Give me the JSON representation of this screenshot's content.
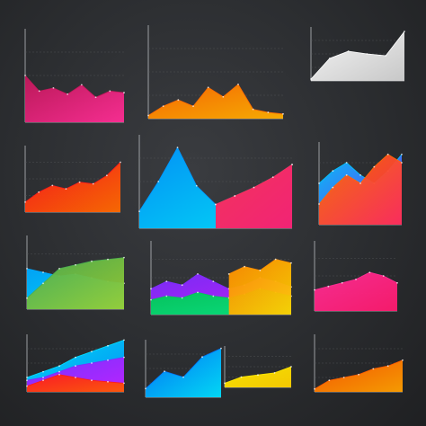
{
  "chart_data": [
    {
      "type": "area",
      "series": [
        {
          "values": [
            30,
            20,
            22,
            18,
            24,
            16,
            20,
            19
          ],
          "colors": [
            "#c2185b",
            "#ff2d95"
          ]
        }
      ],
      "xlim": [
        0,
        7
      ],
      "ylim": [
        0,
        60
      ],
      "grid": true
    },
    {
      "type": "area",
      "series": [
        {
          "values": [
            2,
            8,
            12,
            8,
            20,
            14,
            22,
            6,
            4,
            3
          ],
          "colors": [
            "#ff6a00",
            "#ffb000"
          ]
        }
      ],
      "xlim": [
        0,
        9
      ],
      "ylim": [
        0,
        60
      ],
      "grid": true
    },
    {
      "type": "area",
      "series": [
        {
          "values": [
            2,
            25,
            33,
            30,
            28,
            55
          ],
          "colors": [
            "#ffffff",
            "#d0d0d0"
          ]
        }
      ],
      "xlim": [
        0,
        5
      ],
      "ylim": [
        0,
        60
      ],
      "grid": true
    },
    {
      "type": "area",
      "series": [
        {
          "values": [
            6,
            12,
            16,
            14,
            18,
            17,
            22,
            30
          ],
          "colors": [
            "#ff1a1a",
            "#ff6a00"
          ]
        }
      ],
      "xlim": [
        0,
        7
      ],
      "ylim": [
        0,
        40
      ],
      "grid": true
    },
    {
      "type": "area",
      "series": [
        {
          "values": [
            20,
            55,
            95,
            50,
            28,
            38,
            48,
            60,
            75
          ],
          "colors": [
            "#0096ff",
            "#00e0ff"
          ]
        },
        {
          "values": [
            null,
            null,
            null,
            null,
            28,
            38,
            48,
            60,
            75
          ],
          "colors": [
            "#ff2d55",
            "#ff1a6e"
          ]
        }
      ],
      "xlim": [
        0,
        8
      ],
      "ylim": [
        0,
        110
      ],
      "grid": true
    },
    {
      "type": "area",
      "series": [
        {
          "values": [
            20,
            26,
            30,
            24,
            20,
            26,
            34
          ],
          "colors": [
            "#00c8ff",
            "#7b2cff"
          ]
        },
        {
          "values": [
            10,
            18,
            24,
            20,
            28,
            34,
            30
          ],
          "colors": [
            "#ff6a00",
            "#ff2d55"
          ]
        }
      ],
      "xlim": [
        0,
        6
      ],
      "ylim": [
        0,
        40
      ],
      "grid": true
    },
    {
      "type": "area",
      "series": [
        {
          "values": [
            22,
            20,
            18,
            19,
            17,
            15,
            14
          ],
          "colors": [
            "#00a8ff",
            "#00e0ff"
          ]
        },
        {
          "values": [
            6,
            14,
            22,
            24,
            26,
            27,
            28
          ],
          "colors": [
            "#4caf50",
            "#9acd32"
          ]
        }
      ],
      "xlim": [
        0,
        6
      ],
      "ylim": [
        0,
        40
      ],
      "grid": true
    },
    {
      "type": "area",
      "series": [
        {
          "values": [
            14,
            18,
            16,
            22,
            18,
            14,
            16,
            20,
            18,
            15
          ],
          "colors": [
            "#7b2cff",
            "#c21eff"
          ]
        },
        {
          "values": [
            8,
            10,
            9,
            12,
            10,
            9,
            11,
            14,
            12,
            10
          ],
          "colors": [
            "#00c853",
            "#00e676"
          ]
        },
        {
          "values": [
            null,
            null,
            null,
            null,
            null,
            22,
            26,
            24,
            30,
            28
          ],
          "colors": [
            "#ff8c00",
            "#ffd000"
          ]
        }
      ],
      "xlim": [
        0,
        9
      ],
      "ylim": [
        0,
        40
      ],
      "grid": true
    },
    {
      "type": "area",
      "series": [
        {
          "values": [
            12,
            14,
            16,
            18,
            22,
            20,
            16
          ],
          "colors": [
            "#ff2d95",
            "#ff1a6e"
          ]
        }
      ],
      "xlim": [
        0,
        6
      ],
      "ylim": [
        0,
        40
      ],
      "grid": true
    },
    {
      "type": "area",
      "series": [
        {
          "values": [
            10,
            14,
            18,
            24,
            28,
            32,
            36
          ],
          "colors": [
            "#00e0ff",
            "#0096ff"
          ]
        },
        {
          "values": [
            8,
            10,
            14,
            18,
            20,
            22,
            24
          ],
          "colors": [
            "#7b2cff",
            "#c21eff"
          ]
        },
        {
          "values": [
            4,
            8,
            12,
            10,
            8,
            7,
            6
          ],
          "colors": [
            "#ff1a1a",
            "#ff5a00"
          ]
        }
      ],
      "xlim": [
        0,
        6
      ],
      "ylim": [
        0,
        40
      ],
      "grid": true
    },
    {
      "type": "area",
      "series": [
        {
          "values": [
            6,
            18,
            14,
            28,
            34
          ],
          "colors": [
            "#0077ff",
            "#00e0ff"
          ]
        }
      ],
      "xlim": [
        0,
        4
      ],
      "ylim": [
        0,
        40
      ],
      "grid": true
    },
    {
      "type": "area",
      "series": [
        {
          "values": [
            4,
            10,
            12,
            14,
            20
          ],
          "colors": [
            "#ffea00",
            "#ffd000"
          ]
        }
      ],
      "xlim": [
        0,
        4
      ],
      "ylim": [
        0,
        40
      ],
      "grid": true
    },
    {
      "type": "area",
      "series": [
        {
          "values": [
            2,
            8,
            10,
            12,
            16,
            18,
            22
          ],
          "colors": [
            "#ff5a00",
            "#ffa000"
          ]
        }
      ],
      "xlim": [
        0,
        6
      ],
      "ylim": [
        0,
        40
      ],
      "grid": true
    }
  ]
}
